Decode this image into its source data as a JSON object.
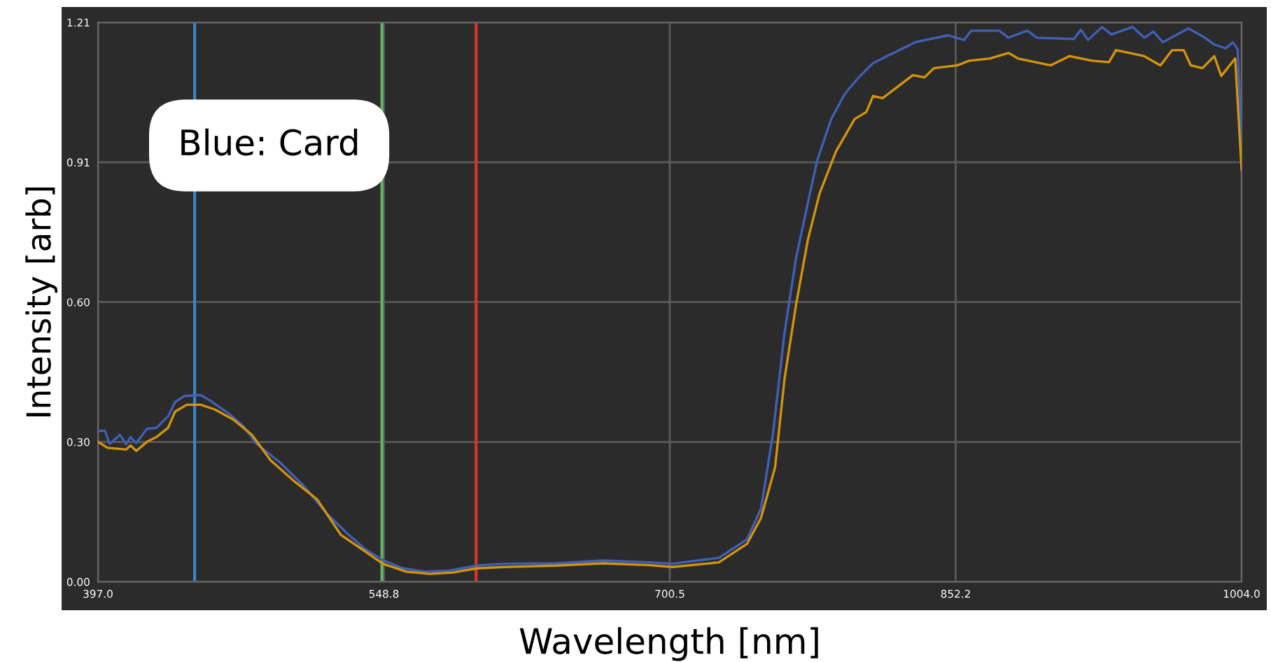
{
  "chart_data": {
    "type": "line",
    "xlabel": "Wavelength [nm]",
    "ylabel": "Intensity [arb]",
    "annotations": [
      "Blue: Card"
    ],
    "xlim": [
      397.0,
      1004.0
    ],
    "ylim": [
      0,
      1.21
    ],
    "xticks": [
      {
        "value": 397.0,
        "label": "397.0"
      },
      {
        "value": 548.75,
        "label": "548.8"
      },
      {
        "value": 700.5,
        "label": "700.5"
      },
      {
        "value": 852.25,
        "label": "852.2"
      },
      {
        "value": 1004.0,
        "label": "1004.0"
      }
    ],
    "yticks": [
      {
        "value": 0,
        "label": "0.00"
      },
      {
        "value": 0.3025,
        "label": "0.30"
      },
      {
        "value": 0.605,
        "label": "0.60"
      },
      {
        "value": 0.9075,
        "label": "0.91"
      },
      {
        "value": 1.21,
        "label": "1.21"
      }
    ],
    "grid": true,
    "legend": false,
    "marker": "none",
    "line_style": "solid",
    "ref_lines": [
      {
        "axis": "x",
        "value": 448.3,
        "label": null,
        "color": "#3a86c8"
      },
      {
        "axis": "x",
        "value": 547.7,
        "label": null,
        "color": "#5cb85c"
      },
      {
        "axis": "x",
        "value": 597.7,
        "label": null,
        "color": "#d9362b"
      }
    ],
    "series": [
      {
        "color": "#4060b8",
        "x": [
          397,
          400.7,
          403.2,
          408.7,
          411.9,
          414.3,
          417.3,
          423,
          428,
          434.2,
          437.9,
          442.9,
          451.5,
          456.5,
          466.4,
          473.8,
          481.3,
          493.7,
          506.1,
          518.4,
          528.4,
          538.3,
          548.2,
          558.1,
          570.5,
          582.9,
          597.7,
          612.6,
          640,
          665,
          690,
          701.8,
          726.6,
          741.5,
          748.9,
          755.2,
          761.4,
          767.5,
          773.8,
          778.7,
          786.2,
          793.5,
          801,
          808.4,
          818.3,
          830.7,
          848.1,
          856.7,
          860.4,
          875.3,
          880.3,
          890.3,
          895.2,
          915,
          918.7,
          922.5,
          929.9,
          934.9,
          946.1,
          952.3,
          957.2,
          962.2,
          975.8,
          984.5,
          989.5,
          995.6,
          999.4,
          1001.9,
          1004
        ],
        "values": [
          0.326,
          0.327,
          0.298,
          0.318,
          0.298,
          0.313,
          0.3,
          0.331,
          0.333,
          0.358,
          0.389,
          0.402,
          0.404,
          0.392,
          0.364,
          0.338,
          0.298,
          0.258,
          0.208,
          0.148,
          0.108,
          0.072,
          0.047,
          0.03,
          0.022,
          0.024,
          0.035,
          0.039,
          0.04,
          0.046,
          0.042,
          0.039,
          0.052,
          0.092,
          0.158,
          0.318,
          0.539,
          0.7,
          0.82,
          0.911,
          1.001,
          1.056,
          1.092,
          1.122,
          1.142,
          1.167,
          1.182,
          1.172,
          1.192,
          1.192,
          1.177,
          1.192,
          1.177,
          1.174,
          1.194,
          1.172,
          1.2,
          1.184,
          1.2,
          1.177,
          1.19,
          1.167,
          1.197,
          1.177,
          1.162,
          1.154,
          1.167,
          1.152,
          0.951
        ]
      },
      {
        "color": "#d4940c",
        "x": [
          397,
          402,
          411.9,
          414.3,
          417.3,
          423,
          428,
          434.2,
          437.9,
          444.1,
          451.5,
          458.9,
          468.8,
          478.7,
          488.6,
          501,
          513.4,
          525.8,
          538.3,
          548.2,
          560.6,
          573,
          585.4,
          597.7,
          612.6,
          640,
          665,
          690,
          701.8,
          726.6,
          741.5,
          748.9,
          756.4,
          761.4,
          767.5,
          773.8,
          780,
          788.7,
          798.6,
          804.8,
          808.4,
          813.4,
          818.3,
          829.5,
          835.7,
          840.7,
          853.1,
          859.3,
          870.4,
          880.3,
          885.3,
          902.6,
          912.5,
          924.9,
          933.6,
          937.3,
          952.3,
          960.9,
          967.1,
          973.3,
          977,
          983.2,
          989.5,
          993.2,
          1000.6,
          1004
        ],
        "values": [
          0.303,
          0.29,
          0.286,
          0.295,
          0.283,
          0.303,
          0.313,
          0.333,
          0.368,
          0.383,
          0.383,
          0.373,
          0.351,
          0.318,
          0.263,
          0.218,
          0.178,
          0.102,
          0.067,
          0.039,
          0.022,
          0.017,
          0.02,
          0.029,
          0.032,
          0.035,
          0.04,
          0.036,
          0.032,
          0.042,
          0.082,
          0.138,
          0.248,
          0.439,
          0.599,
          0.74,
          0.84,
          0.931,
          1.001,
          1.016,
          1.051,
          1.046,
          1.061,
          1.096,
          1.091,
          1.111,
          1.117,
          1.127,
          1.132,
          1.144,
          1.132,
          1.117,
          1.137,
          1.127,
          1.124,
          1.15,
          1.137,
          1.117,
          1.15,
          1.15,
          1.117,
          1.111,
          1.137,
          1.094,
          1.132,
          0.891
        ]
      }
    ]
  }
}
